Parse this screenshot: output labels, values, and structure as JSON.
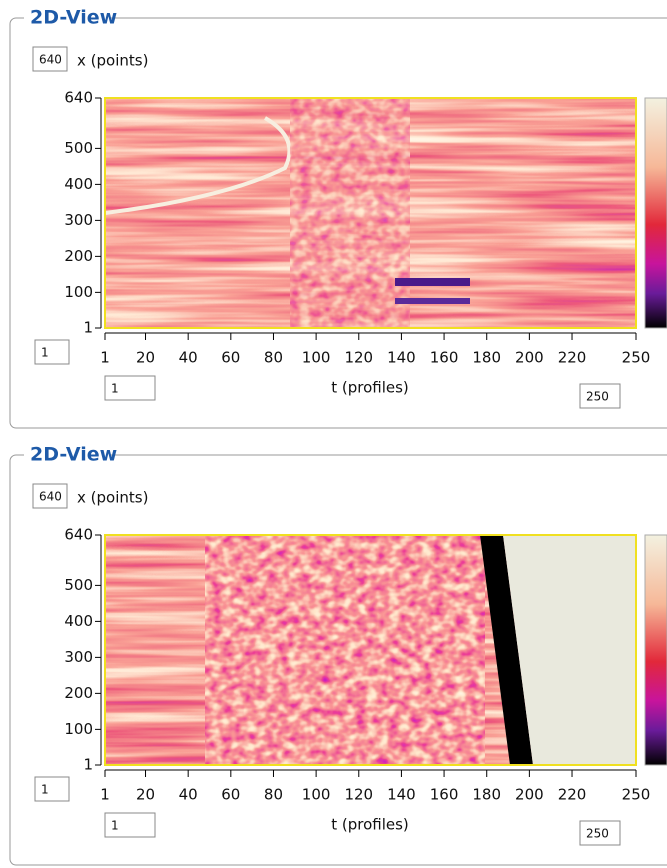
{
  "panels": [
    {
      "title": "2D-View",
      "points_input": "640",
      "x_label": "x (points)",
      "ymin_input": "1",
      "tmin_input": "1",
      "tmax_input": "250",
      "t_label": "t (profiles)",
      "ylim": [
        1,
        640
      ],
      "yticks": [
        1,
        100,
        200,
        300,
        400,
        500,
        640
      ],
      "xlim": [
        1,
        250
      ],
      "xticks": [
        1,
        20,
        40,
        60,
        80,
        100,
        120,
        140,
        160,
        180,
        200,
        220,
        250
      ]
    },
    {
      "title": "2D-View",
      "points_input": "640",
      "x_label": "x (points)",
      "ymin_input": "1",
      "tmin_input": "1",
      "tmax_input": "250",
      "t_label": "t (profiles)",
      "ylim": [
        1,
        640
      ],
      "yticks": [
        1,
        100,
        200,
        300,
        400,
        500,
        640
      ],
      "xlim": [
        1,
        250
      ],
      "xticks": [
        1,
        20,
        40,
        60,
        80,
        100,
        120,
        140,
        160,
        180,
        200,
        220,
        250
      ]
    }
  ]
}
